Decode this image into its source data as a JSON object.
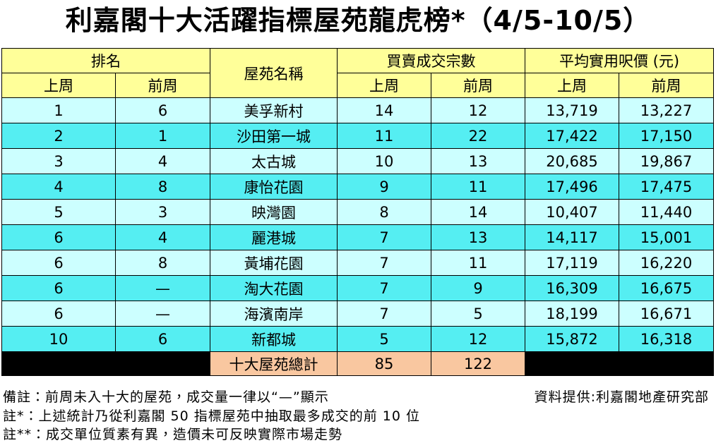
{
  "header": {
    "title": "利嘉閣十大活躍指標屋苑龍虎榜*（4/5-10/5）"
  },
  "table": {
    "group_headers": [
      "排名",
      "屋苑名稱",
      "買賣成交宗數",
      "平均實用呎價 (元)"
    ],
    "sub_headers": [
      "上周",
      "前周",
      "上周",
      "前周",
      "上周",
      "前周"
    ],
    "rows": [
      [
        "1",
        "6",
        "美孚新村",
        "14",
        "12",
        "13,719",
        "13,227"
      ],
      [
        "2",
        "1",
        "沙田第一城",
        "11",
        "22",
        "17,422",
        "17,150"
      ],
      [
        "3",
        "4",
        "太古城",
        "10",
        "13",
        "20,685",
        "19,867"
      ],
      [
        "4",
        "8",
        "康怡花園",
        "9",
        "11",
        "17,496",
        "17,475"
      ],
      [
        "5",
        "3",
        "映灣園",
        "8",
        "14",
        "10,407",
        "11,440"
      ],
      [
        "6",
        "4",
        "麗港城",
        "7",
        "13",
        "14,117",
        "15,001"
      ],
      [
        "6",
        "8",
        "黃埔花園",
        "7",
        "11",
        "17,119",
        "16,220"
      ],
      [
        "6",
        "—",
        "淘大花園",
        "7",
        "9",
        "16,309",
        "16,675"
      ],
      [
        "6",
        "—",
        "海濱南岸",
        "7",
        "5",
        "18,199",
        "16,671"
      ],
      [
        "10",
        "6",
        "新都城",
        "5",
        "12",
        "15,872",
        "16,318"
      ]
    ],
    "total": {
      "label": "十大屋苑總計",
      "values": [
        "85",
        "122"
      ]
    }
  },
  "notes": {
    "note1": "備註：前周未入十大的屋苑，成交量一律以“—”顯示",
    "source": "資料提供:利嘉閣地產研究部",
    "note2": "註*：上述統計乃從利嘉閣 50 指標屋苑中抽取最多成交的前 10 位",
    "note3": "註**：成交單位質素有異，造價未可反映實際市場走勢"
  }
}
